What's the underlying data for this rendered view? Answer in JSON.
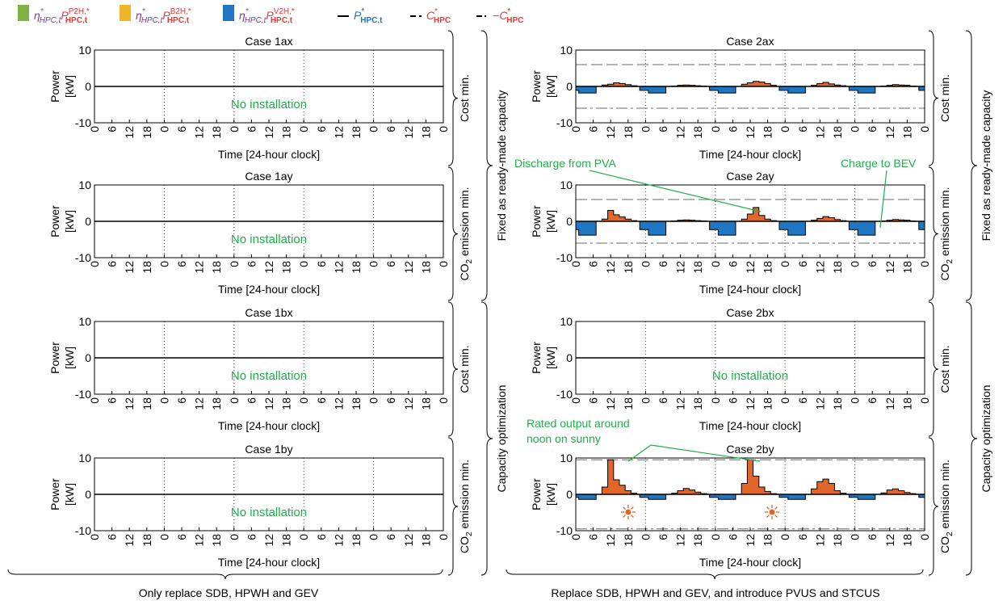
{
  "legend": {
    "items": [
      {
        "kind": "swatch",
        "color": "#7cb342",
        "eta": "η",
        "eta_sup": "*",
        "eta_sub": "HPC,t",
        "p": "P",
        "p_sup": "P2H,*",
        "p_sub": "HPC,t"
      },
      {
        "kind": "swatch",
        "color": "#f0b429",
        "eta": "η",
        "eta_sup": "*",
        "eta_sub": "HPC,t",
        "p": "P",
        "p_sup": "B2H,*",
        "p_sub": "HPC,t"
      },
      {
        "kind": "swatch",
        "color": "#1f77c4",
        "eta": "η",
        "eta_sup": "*",
        "eta_sub": "HPC,t",
        "p": "P",
        "p_sup": "V2H,*",
        "p_sub": "HPC,t"
      },
      {
        "kind": "solid",
        "p": "P",
        "p_sup": "*",
        "p_sub": "HPC,t"
      },
      {
        "kind": "dash",
        "p": "C",
        "p_sup": "*",
        "p_sub": "HPC"
      },
      {
        "kind": "dashdot",
        "minus": "−",
        "p": "C",
        "p_sup": "*",
        "p_sub": "HPC"
      }
    ],
    "colors": {
      "eta": "#7b3fa0",
      "p_red": "#e53935",
      "p_blue": "#1f77c4"
    }
  },
  "axis": {
    "ylabel": "Power",
    "yunit": "[kW]",
    "xlabel": "Time [24-hour clock]",
    "yticks": [
      "10",
      "0",
      "-10"
    ],
    "xticks": [
      "0",
      "6",
      "12",
      "18",
      "0",
      "6",
      "12",
      "18",
      "0",
      "6",
      "12",
      "18",
      "0",
      "6",
      "12",
      "18",
      "0",
      "6",
      "12",
      "18",
      "0"
    ],
    "ylim": [
      -10,
      10
    ]
  },
  "no_install_text": "No installation",
  "rows": {
    "objectives": [
      "Cost min.",
      "emission min.",
      "Cost min.",
      "emission min."
    ],
    "co2_prefix": "CO",
    "co2_sub": "2",
    "groups": [
      "Fixed as ready-made capacity",
      "Capacity optimization"
    ]
  },
  "bottom": {
    "left": "Only replace SDB, HPWH and GEV",
    "right": "Replace SDB, HPWH and GEV, and introduce PVUS and STCUS"
  },
  "annotations": {
    "discharge": "Discharge from PVA",
    "charge": "Charge to BEV",
    "rated_line1": "Rated output around",
    "rated_line2": "noon on sunny"
  },
  "colors": {
    "discharge_fill": "#e0662a",
    "charge_fill": "#1f77c4",
    "annotation": "#1fb04a",
    "sun": "#e0662a"
  },
  "chart_data": [
    {
      "type": "area",
      "title": "Case 1ax",
      "installed": false,
      "ylim": [
        -10,
        10
      ]
    },
    {
      "type": "area",
      "title": "Case 1ay",
      "installed": false,
      "ylim": [
        -10,
        10
      ]
    },
    {
      "type": "area",
      "title": "Case 1bx",
      "installed": false,
      "ylim": [
        -10,
        10
      ]
    },
    {
      "type": "area",
      "title": "Case 1by",
      "installed": false,
      "ylim": [
        -10,
        10
      ]
    },
    {
      "type": "area",
      "title": "Case 2ax",
      "installed": true,
      "ylim": [
        -10,
        10
      ],
      "capacity_line": 6,
      "days": [
        {
          "night": -1.8,
          "solar": [
            0.4,
            0.6,
            1.0,
            0.8,
            0.5,
            0.2
          ]
        },
        {
          "night": -1.8,
          "solar": [
            0.1,
            0.3,
            0.4,
            0.3,
            0.2,
            0.1
          ]
        },
        {
          "night": -1.8,
          "solar": [
            0.6,
            1.0,
            1.4,
            1.2,
            0.8,
            0.3
          ]
        },
        {
          "night": -1.8,
          "solar": [
            0.3,
            0.8,
            1.1,
            0.7,
            0.4,
            0.2
          ]
        },
        {
          "night": -1.8,
          "solar": [
            0.1,
            0.3,
            0.5,
            0.4,
            0.3,
            0.1
          ]
        }
      ]
    },
    {
      "type": "area",
      "title": "Case 2ay",
      "installed": true,
      "ylim": [
        -10,
        10
      ],
      "capacity_line": 6,
      "days": [
        {
          "night": -3.8,
          "solar": [
            0.6,
            3.0,
            1.8,
            1.2,
            0.6,
            0.2
          ]
        },
        {
          "night": -3.8,
          "solar": [
            0.1,
            0.3,
            0.4,
            0.3,
            0.2,
            0.1
          ]
        },
        {
          "night": -3.8,
          "solar": [
            0.6,
            2.0,
            3.8,
            1.6,
            0.6,
            0.2
          ]
        },
        {
          "night": -3.8,
          "solar": [
            0.3,
            0.8,
            1.3,
            1.0,
            0.5,
            0.2
          ]
        },
        {
          "night": -3.8,
          "solar": [
            0.1,
            0.3,
            0.5,
            0.4,
            0.3,
            0.1
          ]
        }
      ]
    },
    {
      "type": "area",
      "title": "Case 2bx",
      "installed": false,
      "ylim": [
        -10,
        10
      ]
    },
    {
      "type": "area",
      "title": "Case 2by",
      "installed": true,
      "ylim": [
        -10,
        10
      ],
      "capacity_line": 9.5,
      "days": [
        {
          "night": -1.4,
          "solar": [
            2.0,
            9.5,
            4.0,
            2.5,
            1.0,
            0.3
          ]
        },
        {
          "night": -1.4,
          "solar": [
            0.3,
            1.0,
            1.6,
            1.2,
            0.6,
            0.2
          ]
        },
        {
          "night": -1.4,
          "solar": [
            3.0,
            9.5,
            5.0,
            2.0,
            0.8,
            0.2
          ]
        },
        {
          "night": -1.4,
          "solar": [
            1.5,
            3.5,
            4.2,
            3.0,
            1.0,
            0.3
          ]
        },
        {
          "night": -1.4,
          "solar": [
            0.4,
            1.2,
            1.5,
            1.0,
            0.5,
            0.2
          ]
        }
      ]
    }
  ]
}
